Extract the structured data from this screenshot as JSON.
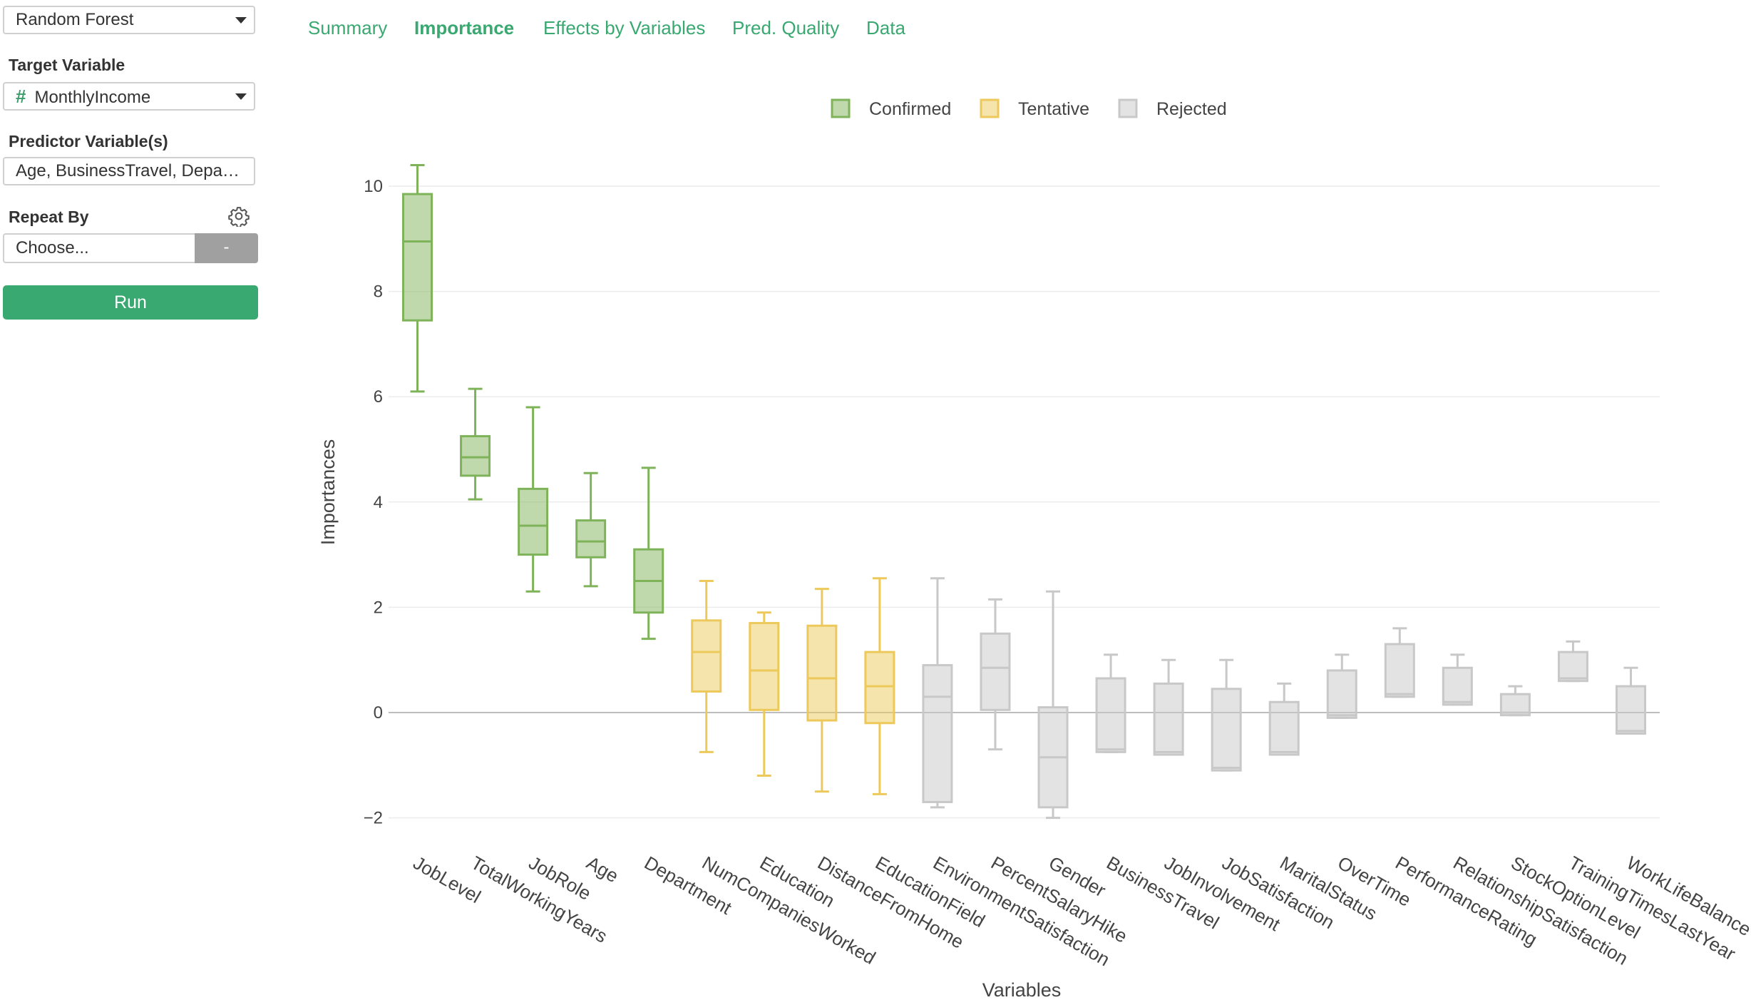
{
  "sidebar": {
    "model_select": "Random Forest",
    "target_label": "Target Variable",
    "target_value": "MonthlyIncome",
    "target_icon": "#",
    "predictor_label": "Predictor Variable(s)",
    "predictor_value": "Age, BusinessTravel, Depar…",
    "repeat_label": "Repeat By",
    "repeat_placeholder": "Choose...",
    "repeat_button": "-",
    "run_label": "Run"
  },
  "tabs": [
    {
      "label": "Summary",
      "active": false
    },
    {
      "label": "Importance",
      "active": true
    },
    {
      "label": "Effects by Variables",
      "active": false
    },
    {
      "label": "Pred. Quality",
      "active": false
    },
    {
      "label": "Data",
      "active": false
    }
  ],
  "colors": {
    "accent": "#3aa871",
    "confirmed": "#7fb35a",
    "tentative": "#ecc95a",
    "rejected": "#c8c8c8"
  },
  "chart_data": {
    "type": "box",
    "xlabel": "Variables",
    "ylabel": "Importances",
    "ylim": [
      -2.2,
      10.6
    ],
    "yticks": [
      -2,
      0,
      2,
      4,
      6,
      8,
      10
    ],
    "grid": true,
    "legend_position": "top-center",
    "legend": [
      {
        "name": "Confirmed",
        "group": "confirmed"
      },
      {
        "name": "Tentative",
        "group": "tentative"
      },
      {
        "name": "Rejected",
        "group": "rejected"
      }
    ],
    "boxes": [
      {
        "name": "JobLevel",
        "group": "confirmed",
        "min": 6.1,
        "q1": 7.45,
        "median": 8.95,
        "q3": 9.85,
        "max": 10.4
      },
      {
        "name": "TotalWorkingYears",
        "group": "confirmed",
        "min": 4.05,
        "q1": 4.5,
        "median": 4.85,
        "q3": 5.25,
        "max": 6.15
      },
      {
        "name": "JobRole",
        "group": "confirmed",
        "min": 2.3,
        "q1": 3.0,
        "median": 3.55,
        "q3": 4.25,
        "max": 5.8
      },
      {
        "name": "Age",
        "group": "confirmed",
        "min": 2.4,
        "q1": 2.95,
        "median": 3.25,
        "q3": 3.65,
        "max": 4.55
      },
      {
        "name": "Department",
        "group": "confirmed",
        "min": 1.4,
        "q1": 1.9,
        "median": 2.5,
        "q3": 3.1,
        "max": 4.65
      },
      {
        "name": "NumCompaniesWorked",
        "group": "tentative",
        "min": -0.75,
        "q1": 0.4,
        "median": 1.15,
        "q3": 1.75,
        "max": 2.5
      },
      {
        "name": "Education",
        "group": "tentative",
        "min": -1.2,
        "q1": 0.05,
        "median": 0.8,
        "q3": 1.7,
        "max": 1.9
      },
      {
        "name": "DistanceFromHome",
        "group": "tentative",
        "min": -1.5,
        "q1": -0.15,
        "median": 0.65,
        "q3": 1.65,
        "max": 2.35
      },
      {
        "name": "EducationField",
        "group": "tentative",
        "min": -1.55,
        "q1": -0.2,
        "median": 0.5,
        "q3": 1.15,
        "max": 2.55
      },
      {
        "name": "EnvironmentSatisfaction",
        "group": "rejected",
        "min": -1.8,
        "q1": -1.7,
        "median": 0.3,
        "q3": 0.9,
        "max": 2.55
      },
      {
        "name": "PercentSalaryHike",
        "group": "rejected",
        "min": -0.7,
        "q1": 0.05,
        "median": 0.85,
        "q3": 1.5,
        "max": 2.15
      },
      {
        "name": "Gender",
        "group": "rejected",
        "min": -2.0,
        "q1": -1.8,
        "median": -0.85,
        "q3": 0.1,
        "max": 2.3
      },
      {
        "name": "BusinessTravel",
        "group": "rejected",
        "min": -0.75,
        "q1": -0.75,
        "median": -0.7,
        "q3": 0.65,
        "max": 1.1
      },
      {
        "name": "JobInvolvement",
        "group": "rejected",
        "min": -0.8,
        "q1": -0.8,
        "median": -0.75,
        "q3": 0.55,
        "max": 1.0
      },
      {
        "name": "JobSatisfaction",
        "group": "rejected",
        "min": -1.1,
        "q1": -1.1,
        "median": -1.05,
        "q3": 0.45,
        "max": 1.0
      },
      {
        "name": "MaritalStatus",
        "group": "rejected",
        "min": -0.8,
        "q1": -0.8,
        "median": -0.75,
        "q3": 0.2,
        "max": 0.55
      },
      {
        "name": "OverTime",
        "group": "rejected",
        "min": -0.1,
        "q1": -0.1,
        "median": -0.05,
        "q3": 0.8,
        "max": 1.1
      },
      {
        "name": "PerformanceRating",
        "group": "rejected",
        "min": 0.3,
        "q1": 0.3,
        "median": 0.35,
        "q3": 1.3,
        "max": 1.6
      },
      {
        "name": "RelationshipSatisfaction",
        "group": "rejected",
        "min": 0.15,
        "q1": 0.15,
        "median": 0.2,
        "q3": 0.85,
        "max": 1.1
      },
      {
        "name": "StockOptionLevel",
        "group": "rejected",
        "min": -0.05,
        "q1": -0.05,
        "median": 0.0,
        "q3": 0.35,
        "max": 0.5
      },
      {
        "name": "TrainingTimesLastYear",
        "group": "rejected",
        "min": 0.6,
        "q1": 0.6,
        "median": 0.65,
        "q3": 1.15,
        "max": 1.35
      },
      {
        "name": "WorkLifeBalance",
        "group": "rejected",
        "min": -0.4,
        "q1": -0.4,
        "median": -0.35,
        "q3": 0.5,
        "max": 0.85
      }
    ]
  }
}
